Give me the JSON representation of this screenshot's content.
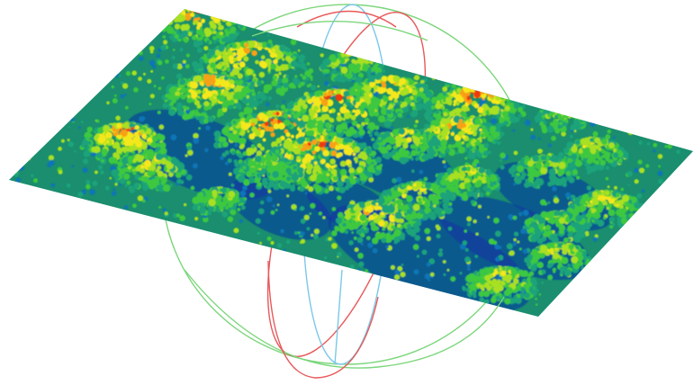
{
  "viewport": {
    "background": "#ffffff",
    "content": "point-cloud-3d",
    "color_ramp": [
      "#0a2fa8",
      "#0f74b8",
      "#1aa37a",
      "#3cc840",
      "#a8e020",
      "#f4e81c",
      "#f8a018",
      "#ee3a10"
    ],
    "gizmo_colors": {
      "x_axis": "#e8585a",
      "y_axis": "#7cd67c",
      "z_axis": "#7cc8e8"
    }
  }
}
